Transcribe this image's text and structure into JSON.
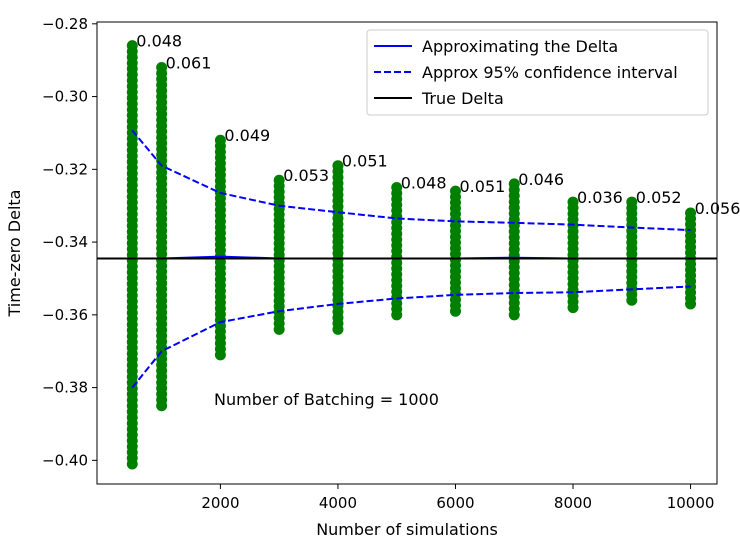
{
  "chart_data": {
    "type": "scatter",
    "title": "",
    "xlabel": "Number of simulations",
    "ylabel": "Time-zero Delta",
    "xlim": [
      -100,
      10450
    ],
    "ylim": [
      -0.4065,
      -0.2795
    ],
    "x_ticks": [
      2000,
      4000,
      6000,
      8000,
      10000
    ],
    "y_ticks": [
      -0.28,
      -0.3,
      -0.32,
      -0.34,
      -0.36,
      -0.38,
      -0.4
    ],
    "y_tick_labels": [
      "−0.28",
      "−0.30",
      "−0.32",
      "−0.34",
      "−0.36",
      "−0.38",
      "−0.40"
    ],
    "grid": false,
    "legend_position": "top-right",
    "annotation": "Number of Batching = 1000",
    "x": [
      500,
      1000,
      2000,
      3000,
      4000,
      5000,
      6000,
      7000,
      8000,
      9000,
      10000
    ],
    "scatter_ranges": [
      {
        "x": 500,
        "min": -0.401,
        "max": -0.286,
        "max_label": "0.048"
      },
      {
        "x": 1000,
        "min": -0.385,
        "max": -0.292,
        "max_label": "0.061"
      },
      {
        "x": 2000,
        "min": -0.371,
        "max": -0.312,
        "max_label": "0.049"
      },
      {
        "x": 3000,
        "min": -0.364,
        "max": -0.323,
        "max_label": "0.053"
      },
      {
        "x": 4000,
        "min": -0.364,
        "max": -0.319,
        "max_label": "0.051"
      },
      {
        "x": 5000,
        "min": -0.36,
        "max": -0.325,
        "max_label": "0.048"
      },
      {
        "x": 6000,
        "min": -0.359,
        "max": -0.326,
        "max_label": "0.051"
      },
      {
        "x": 7000,
        "min": -0.36,
        "max": -0.324,
        "max_label": "0.046"
      },
      {
        "x": 8000,
        "min": -0.358,
        "max": -0.329,
        "max_label": "0.036"
      },
      {
        "x": 9000,
        "min": -0.356,
        "max": -0.329,
        "max_label": "0.052"
      },
      {
        "x": 10000,
        "min": -0.357,
        "max": -0.332,
        "max_label": "0.056"
      }
    ],
    "series": [
      {
        "name": "Approximating the Delta",
        "style": "solid",
        "color": "#0000ff",
        "values": [
          -0.3445,
          -0.3445,
          -0.344,
          -0.3445,
          -0.3445,
          -0.3445,
          -0.3445,
          -0.3443,
          -0.3445,
          -0.3445,
          -0.3445
        ]
      },
      {
        "name": "Approx 95% confidence interval",
        "style": "dashed",
        "color": "#0000ff",
        "values": [
          -0.3093,
          -0.319,
          -0.3265,
          -0.33,
          -0.3318,
          -0.3335,
          -0.3343,
          -0.3347,
          -0.3352,
          -0.336,
          -0.3367
        ]
      },
      {
        "name": "",
        "style": "dashed",
        "color": "#0000ff",
        "values": [
          -0.38,
          -0.37,
          -0.362,
          -0.359,
          -0.357,
          -0.3555,
          -0.3545,
          -0.354,
          -0.3538,
          -0.353,
          -0.3522
        ]
      },
      {
        "name": "True Delta",
        "style": "solid",
        "color": "#000000",
        "constant": -0.3445
      }
    ],
    "colors": {
      "points": "#008000",
      "approx": "#0000ff",
      "true_delta": "#000000"
    }
  }
}
